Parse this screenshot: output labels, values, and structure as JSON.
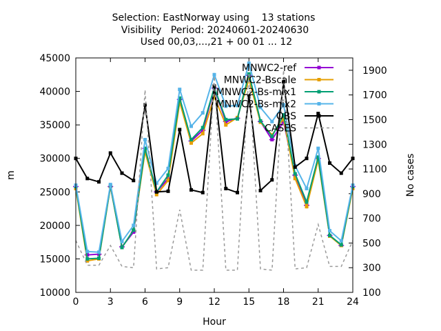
{
  "chart_data": {
    "type": "line",
    "title": [
      "Selection: EastNorway using    13 stations",
      "Visibility   Period: 20240601-20240630",
      "Used 00,03,...,21 + 00 01 ... 12"
    ],
    "xlabel": "Hour",
    "ylabel": "m",
    "y2label": "No cases",
    "xlim": [
      0,
      24
    ],
    "ylim": [
      10000,
      45000
    ],
    "y2lim": [
      100,
      2000
    ],
    "xticks": [
      "0",
      "3",
      "6",
      "9",
      "12",
      "15",
      "18",
      "21",
      "24"
    ],
    "yticks": [
      "10000",
      "15000",
      "20000",
      "25000",
      "30000",
      "35000",
      "40000",
      "45000"
    ],
    "y2ticks": [
      "100",
      "300",
      "500",
      "700",
      "900",
      "1100",
      "1300",
      "1500",
      "1700",
      "1900"
    ],
    "legend_position": "top-right",
    "x": [
      0,
      1,
      2,
      3,
      4,
      5,
      6,
      7,
      8,
      9,
      10,
      11,
      12,
      13,
      14,
      15,
      16,
      17,
      18,
      19,
      20,
      21,
      22,
      23,
      24
    ],
    "series": [
      {
        "name": "MNWC2-ref",
        "color": "#9400d3",
        "marker": "plus-square",
        "axis": "y",
        "values": [
          25800,
          15600,
          15700,
          25800,
          16800,
          19000,
          31500,
          25000,
          27000,
          38800,
          32600,
          34200,
          40500,
          35500,
          36000,
          42400,
          35500,
          32800,
          35500,
          27500,
          23000,
          30000,
          18500,
          17000,
          25800
        ]
      },
      {
        "name": "MNWC2-Bscale",
        "color": "#e69f00",
        "marker": "square",
        "axis": "y",
        "values": [
          25500,
          14700,
          15000,
          25800,
          16700,
          19300,
          31000,
          24600,
          26700,
          38400,
          32300,
          33700,
          39200,
          35000,
          36100,
          41800,
          35400,
          33500,
          35900,
          27000,
          22800,
          29800,
          18400,
          17000,
          25500
        ]
      },
      {
        "name": "MNWC2-Bs-mix1",
        "color": "#009e73",
        "marker": "square",
        "axis": "y",
        "values": [
          25800,
          15000,
          15100,
          25900,
          16700,
          19300,
          31500,
          25000,
          27500,
          39000,
          32800,
          34600,
          40600,
          35800,
          35900,
          42600,
          35600,
          33300,
          36500,
          27700,
          23500,
          30200,
          18500,
          17100,
          25800
        ]
      },
      {
        "name": "MNWC2-Bs-mix2",
        "color": "#56b4e9",
        "marker": "square",
        "axis": "y",
        "values": [
          26000,
          16100,
          16000,
          26100,
          17600,
          20000,
          32800,
          26300,
          28500,
          40300,
          34800,
          36800,
          42500,
          37800,
          37900,
          44200,
          37600,
          35500,
          38000,
          28900,
          25500,
          31500,
          19200,
          17700,
          26000
        ]
      },
      {
        "name": "OBS",
        "color": "#000000",
        "marker": "square",
        "axis": "y",
        "values": [
          30000,
          27000,
          26500,
          30800,
          27800,
          26700,
          38000,
          25000,
          25100,
          34300,
          25300,
          24900,
          40800,
          25500,
          24900,
          39300,
          25200,
          26800,
          41400,
          28700,
          30000,
          36700,
          29300,
          27800,
          30000
        ]
      },
      {
        "name": "CASES",
        "color": "#999999",
        "marker": "none",
        "dash": true,
        "axis": "y2",
        "values": [
          520,
          320,
          320,
          480,
          310,
          300,
          1740,
          290,
          300,
          770,
          280,
          280,
          1850,
          280,
          280,
          1880,
          290,
          280,
          1900,
          290,
          300,
          650,
          310,
          310,
          520
        ]
      }
    ]
  }
}
